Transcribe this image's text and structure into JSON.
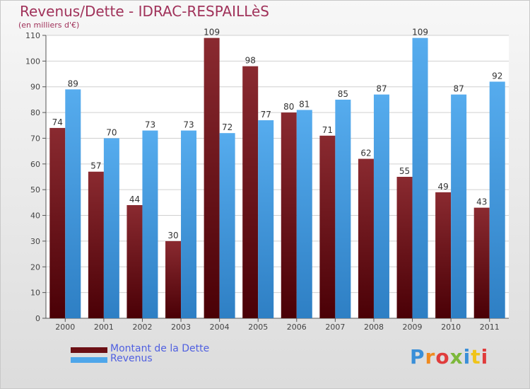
{
  "header": {
    "title": "Revenus/Dette - IDRAC-RESPAILLèS",
    "subtitle": "(en milliers d'€)"
  },
  "legend": {
    "items": [
      {
        "label": "Montant de la Dette",
        "color": "#6b0f14"
      },
      {
        "label": "Revenus",
        "color": "#4ea6ea"
      }
    ]
  },
  "logo": {
    "text": "Proxiti"
  },
  "chart_data": {
    "type": "bar",
    "categories": [
      "2000",
      "2001",
      "2002",
      "2003",
      "2004",
      "2005",
      "2006",
      "2007",
      "2008",
      "2009",
      "2010",
      "2011"
    ],
    "series": [
      {
        "name": "Montant de la Dette",
        "color": "#6b0f14",
        "values": [
          74,
          57,
          44,
          30,
          109,
          98,
          80,
          71,
          62,
          55,
          49,
          43
        ]
      },
      {
        "name": "Revenus",
        "color": "#4ea6ea",
        "values": [
          89,
          70,
          73,
          73,
          72,
          77,
          81,
          85,
          87,
          109,
          87,
          92
        ]
      }
    ],
    "yticks": [
      0,
      10,
      20,
      30,
      40,
      50,
      60,
      70,
      80,
      90,
      100,
      110
    ],
    "ylim": [
      0,
      110
    ],
    "grid": true,
    "legend_position": "bottom-left"
  }
}
